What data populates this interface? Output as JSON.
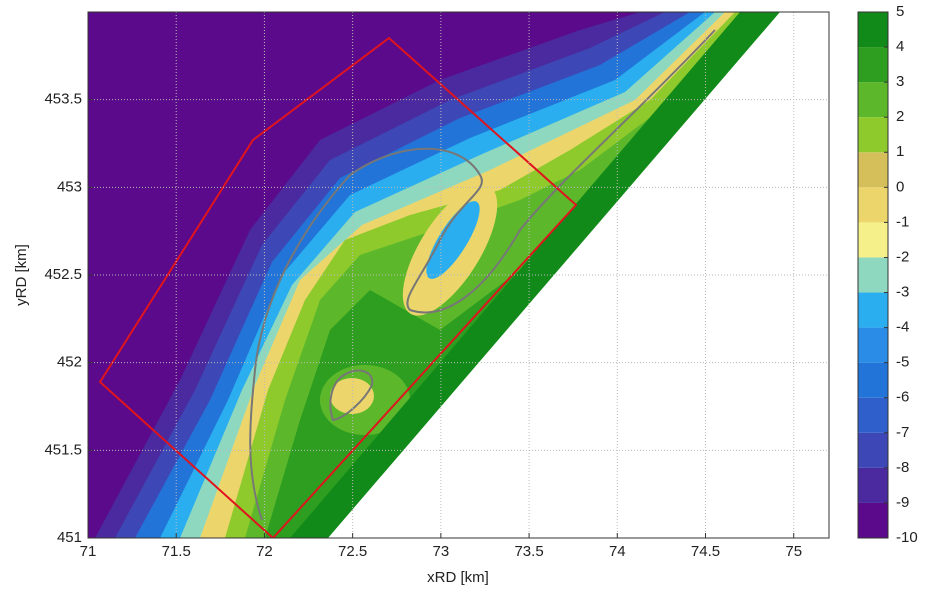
{
  "chart_data": {
    "type": "contour",
    "xlabel": "xRD [km]",
    "ylabel": "yRD [km]",
    "xlim": [
      71,
      75.2
    ],
    "ylim": [
      451,
      454
    ],
    "xticks": [
      71,
      71.5,
      72,
      72.5,
      73,
      73.5,
      74,
      74.5,
      75
    ],
    "yticks": [
      451,
      451.5,
      452,
      452.5,
      453,
      453.5
    ],
    "grid": true,
    "colorbar": {
      "levels": [
        -10,
        -9,
        -8,
        -7,
        -6,
        -5,
        -4,
        -3,
        -2,
        -1,
        0,
        1,
        2,
        3,
        4,
        5
      ],
      "colors": [
        "#5a0a8a",
        "#4a2a9e",
        "#3d48b6",
        "#2f5fca",
        "#2274d8",
        "#2a8ce6",
        "#2aaef0",
        "#8fd8c0",
        "#f6f08a",
        "#ecd66c",
        "#d4bf5a",
        "#8fca2c",
        "#5cb82a",
        "#2e9e20",
        "#118a1a"
      ]
    }
  }
}
